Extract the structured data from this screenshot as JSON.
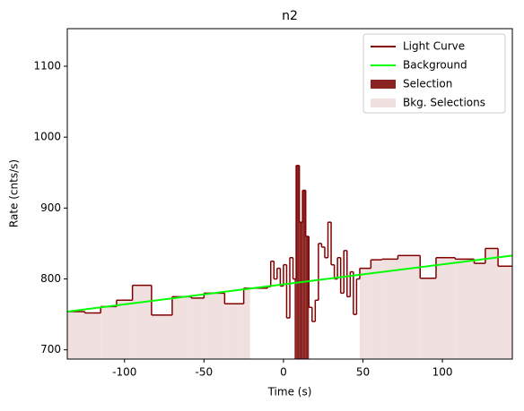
{
  "chart_data": {
    "type": "step",
    "title": "n2",
    "xlabel": "Time (s)",
    "ylabel": "Rate (cnts/s)",
    "xlim": [
      -136,
      144
    ],
    "ylim": [
      687,
      1153
    ],
    "xticks": [
      -100,
      -50,
      0,
      50,
      100
    ],
    "yticks": [
      700,
      800,
      900,
      1000,
      1100
    ],
    "legend": "upper right",
    "light_curve": {
      "name": "Light Curve",
      "color": "#800000",
      "bins": [
        -136,
        -125,
        -115,
        -105,
        -95,
        -83,
        -70,
        -58,
        -50,
        -37,
        -25,
        -10,
        -8,
        -6,
        -4,
        -2,
        0,
        2,
        4,
        6,
        8,
        10,
        12,
        14,
        16,
        18,
        20,
        22,
        24,
        26,
        28,
        30,
        32,
        34,
        36,
        38,
        40,
        42,
        44,
        46,
        48,
        55,
        62,
        72,
        86,
        96,
        108,
        120,
        127,
        135,
        144
      ],
      "values": [
        754,
        752,
        761,
        770,
        791,
        749,
        775,
        773,
        780,
        765,
        787,
        789,
        825,
        800,
        815,
        790,
        820,
        745,
        830,
        800,
        960,
        880,
        925,
        860,
        760,
        740,
        770,
        850,
        845,
        830,
        880,
        820,
        800,
        830,
        780,
        840,
        775,
        810,
        750,
        800,
        815,
        827,
        828,
        833,
        801,
        830,
        828,
        822,
        843,
        818
      ]
    },
    "background": {
      "name": "Background",
      "color": "#00ff00",
      "x": [
        -136,
        144
      ],
      "values": [
        754,
        833
      ]
    },
    "selection": {
      "name": "Selection",
      "color": "#8b2323",
      "range": [
        7,
        16
      ]
    },
    "bkg_selections": {
      "name": "Bkg. Selections",
      "color": "#f0e0e0",
      "ranges": [
        [
          -136,
          -21
        ],
        [
          48,
          144
        ]
      ]
    }
  }
}
